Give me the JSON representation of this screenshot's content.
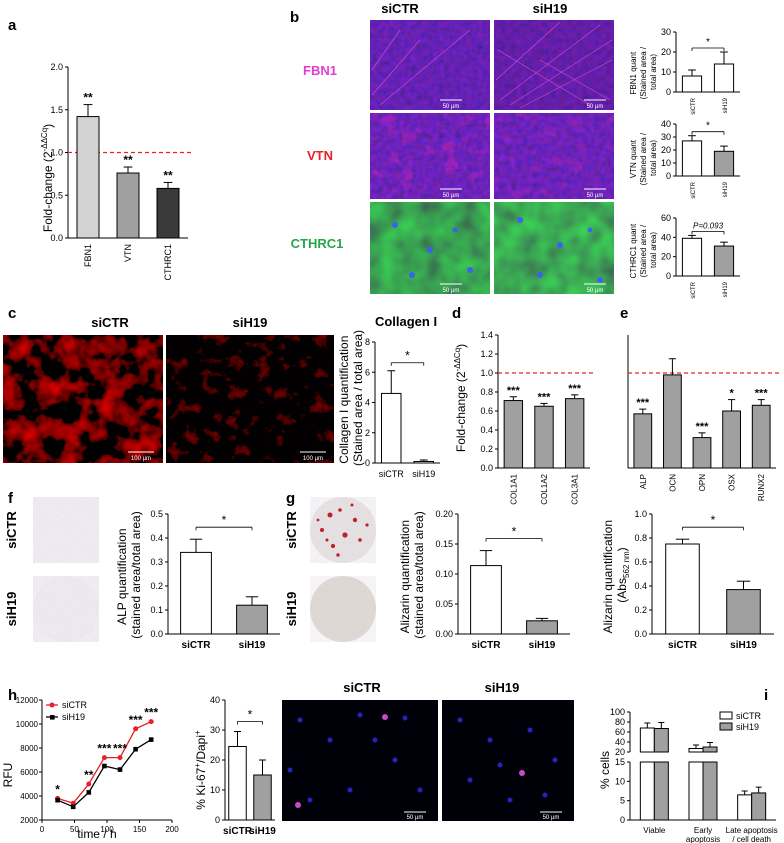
{
  "panels": {
    "a": {
      "label": "a",
      "ylabel": "Fold-change (2",
      "ylabel_sup": "-ΔΔCq",
      "ylabel_end": ")",
      "stars": [
        "**",
        "**",
        "**"
      ]
    },
    "b": {
      "label": "b",
      "col_headers": [
        "siCTR",
        "siH19"
      ],
      "row_labels": [
        "FBN1",
        "VTN",
        "CTHRC1"
      ],
      "scale": "50 µm",
      "quant_ylabels": [
        [
          "FBN1 quant",
          "(Stained area /",
          "total area)"
        ],
        [
          "VTN quant",
          "(Stained area /",
          "total area)"
        ],
        [
          "CTHRC1 quant",
          "(Stained area /",
          "total area)"
        ]
      ],
      "sig": [
        "*",
        "*",
        "P=0.093"
      ]
    },
    "c": {
      "label": "c",
      "headers": [
        "siCTR",
        "siH19"
      ],
      "scale": "100 µm",
      "title": "Collagen I",
      "ylabel": [
        "Collagen I quantification",
        "(Stained area / total area)"
      ],
      "sig": "*"
    },
    "d": {
      "label": "d",
      "ylabel": "Fold-change (2",
      "ylabel_sup": "-ΔΔCq",
      "ylabel_end": ")",
      "stars": [
        "***",
        "***",
        "***"
      ]
    },
    "e": {
      "label": "e",
      "stars": [
        "***",
        "",
        "***",
        "*",
        "***"
      ]
    },
    "f": {
      "label": "f",
      "row_labels": [
        "siCTR",
        "siH19"
      ],
      "ylabel": [
        "ALP quantification",
        "(stained area/total area)"
      ],
      "sig": "*"
    },
    "g": {
      "label": "g",
      "row_labels": [
        "siCTR",
        "siH19"
      ],
      "ylabel1": [
        "Alizarin quantification",
        "(stained area/total area)"
      ],
      "ylabel2": [
        "Alizarin quantification",
        "(Abs",
        "562 nm",
        ")"
      ],
      "sig": "*"
    },
    "h": {
      "label": "h",
      "ylabel": "RFU",
      "xlabel": "time / h",
      "legend": [
        "siCTR",
        "siH19"
      ],
      "stars": [
        "*",
        "**",
        "***",
        "***",
        "***",
        "***"
      ],
      "ki_ylabel": "% Ki-67",
      "ki_sup1": "+",
      "ki_mid": "/Dapi",
      "ki_sup2": "+",
      "ki_sig": "*",
      "img_headers": [
        "siCTR",
        "siH19"
      ],
      "scale": "50 µm"
    },
    "i": {
      "label": "i",
      "ylabel": "% cells",
      "legend": [
        "siCTR",
        "siH19"
      ]
    }
  },
  "colors": {
    "siCTR_line": "#e8202a",
    "siH19_line": "#000000",
    "bar_light": "#d3d3d3",
    "bar_mid": "#a0a0a0",
    "bar_dark": "#3a3a3a",
    "dashed": "#e8202a"
  },
  "chart_data": [
    {
      "id": "a",
      "type": "bar",
      "categories": [
        "FBN1",
        "VTN",
        "CTHRC1"
      ],
      "values": [
        1.42,
        0.76,
        0.58
      ],
      "errors": [
        0.14,
        0.07,
        0.07
      ],
      "ylim": [
        0,
        2.0
      ],
      "yticks": [
        "0.0",
        "0.5",
        "1.0",
        "1.5",
        "2.0"
      ],
      "reference_line": 1.0
    },
    {
      "id": "b-FBN1",
      "type": "bar",
      "categories": [
        "siCTR",
        "siH19"
      ],
      "values": [
        8,
        14
      ],
      "errors": [
        3,
        6
      ],
      "ylim": [
        0,
        30
      ],
      "yticks": [
        "0",
        "10",
        "20",
        "30"
      ]
    },
    {
      "id": "b-VTN",
      "type": "bar",
      "categories": [
        "siCTR",
        "siH19"
      ],
      "values": [
        27,
        19
      ],
      "errors": [
        4,
        4
      ],
      "ylim": [
        0,
        40
      ],
      "yticks": [
        "0",
        "10",
        "20",
        "30",
        "40"
      ]
    },
    {
      "id": "b-CTHRC1",
      "type": "bar",
      "categories": [
        "siCTR",
        "siH19"
      ],
      "values": [
        39,
        31
      ],
      "errors": [
        3,
        4
      ],
      "ylim": [
        0,
        60
      ],
      "yticks": [
        "0",
        "20",
        "40",
        "60"
      ]
    },
    {
      "id": "c",
      "type": "bar",
      "categories": [
        "siCTR",
        "siH19"
      ],
      "values": [
        4.6,
        0.1
      ],
      "errors": [
        1.5,
        0.1
      ],
      "ylim": [
        0,
        8
      ],
      "yticks": [
        "0",
        "2",
        "4",
        "6",
        "8"
      ]
    },
    {
      "id": "d",
      "type": "bar",
      "categories": [
        "COL1A1",
        "COL1A2",
        "COL3A1"
      ],
      "values": [
        0.71,
        0.65,
        0.73
      ],
      "errors": [
        0.04,
        0.03,
        0.04
      ],
      "ylim": [
        0,
        1.4
      ],
      "yticks": [
        "0.0",
        "0.2",
        "0.4",
        "0.6",
        "0.8",
        "1.0",
        "1.2",
        "1.4"
      ],
      "reference_line": 1.0
    },
    {
      "id": "e",
      "type": "bar",
      "categories": [
        "ALP",
        "OCN",
        "OPN",
        "OSX",
        "RUNX2"
      ],
      "values": [
        0.57,
        0.98,
        0.32,
        0.6,
        0.66
      ],
      "errors": [
        0.05,
        0.17,
        0.05,
        0.12,
        0.06
      ],
      "ylim": [
        0,
        1.4
      ],
      "reference_line": 1.0
    },
    {
      "id": "f",
      "type": "bar",
      "categories": [
        "siCTR",
        "siH19"
      ],
      "values": [
        0.34,
        0.12
      ],
      "errors": [
        0.055,
        0.035
      ],
      "ylim": [
        0,
        0.5
      ],
      "yticks": [
        "0.0",
        "0.1",
        "0.2",
        "0.3",
        "0.4",
        "0.5"
      ]
    },
    {
      "id": "g-area",
      "type": "bar",
      "categories": [
        "siCTR",
        "siH19"
      ],
      "values": [
        0.114,
        0.022
      ],
      "errors": [
        0.025,
        0.004
      ],
      "ylim": [
        0,
        0.2
      ],
      "yticks": [
        "0.00",
        "0.05",
        "0.10",
        "0.15",
        "0.20"
      ]
    },
    {
      "id": "g-abs",
      "type": "bar",
      "categories": [
        "siCTR",
        "siH19"
      ],
      "values": [
        0.75,
        0.37
      ],
      "errors": [
        0.04,
        0.07
      ],
      "ylim": [
        0,
        1.0
      ],
      "yticks": [
        "0.0",
        "0.2",
        "0.4",
        "0.6",
        "0.8",
        "1.0"
      ]
    },
    {
      "id": "h-rfu",
      "type": "line",
      "x": [
        24,
        48,
        72,
        96,
        120,
        144,
        168
      ],
      "series": [
        {
          "name": "siCTR",
          "values": [
            3800,
            3400,
            5000,
            7200,
            7200,
            9600,
            10200
          ]
        },
        {
          "name": "siH19",
          "values": [
            3650,
            3100,
            4300,
            6500,
            6200,
            7900,
            8700
          ]
        }
      ],
      "xlim": [
        0,
        200
      ],
      "ylim": [
        2000,
        12000
      ],
      "xticks": [
        "0",
        "50",
        "100",
        "150",
        "200"
      ],
      "yticks": [
        "2000",
        "4000",
        "6000",
        "8000",
        "10000",
        "12000"
      ]
    },
    {
      "id": "h-ki67",
      "type": "bar",
      "categories": [
        "siCTR",
        "siH19"
      ],
      "values": [
        24.5,
        15
      ],
      "errors": [
        5,
        5
      ],
      "ylim": [
        0,
        40
      ],
      "yticks": [
        "0",
        "10",
        "20",
        "30",
        "40"
      ]
    },
    {
      "id": "i",
      "type": "bar",
      "categories": [
        "Viable",
        "Early apoptosis",
        "Late apoptosis / cell death"
      ],
      "series": [
        {
          "name": "siCTR",
          "values": [
            68,
            27,
            6.5
          ]
        },
        {
          "name": "siH19",
          "values": [
            67,
            30,
            7
          ]
        }
      ],
      "errors": [
        [
          10,
          7,
          1
        ],
        [
          12,
          9,
          1.5
        ]
      ],
      "ylim": [
        0,
        100
      ],
      "yticks_low": [
        "0",
        "5",
        "10",
        "15"
      ],
      "yticks_high": [
        "20",
        "40",
        "60",
        "80",
        "100"
      ]
    }
  ]
}
